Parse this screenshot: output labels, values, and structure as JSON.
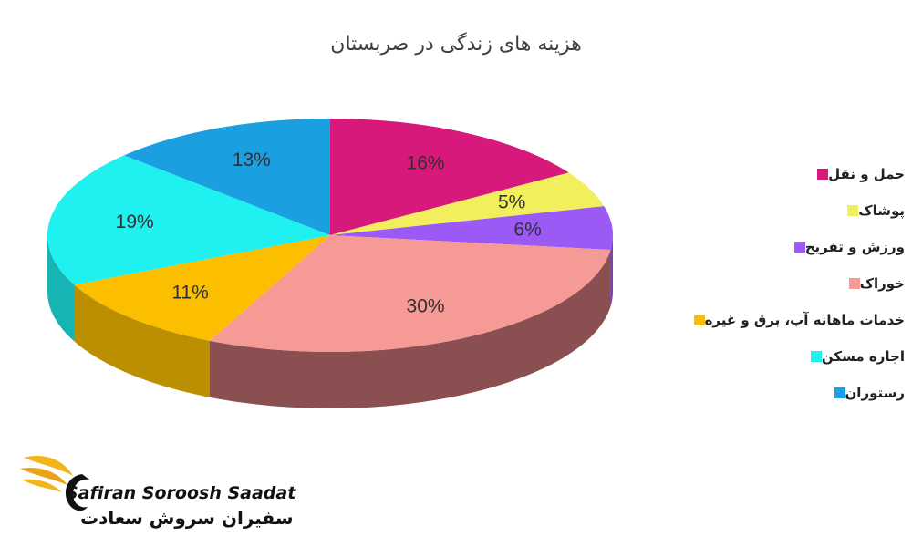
{
  "chart_data": {
    "type": "pie",
    "title": "هزینه های زندگی در صربستان",
    "categories": [
      "حمل و نقل",
      "پوشاک",
      "ورزش و تفریح",
      "خوراک",
      "خدمات ماهانه آب، برق و غیره",
      "اجاره مسکن",
      "رستوران"
    ],
    "values": [
      16,
      5,
      6,
      30,
      11,
      19,
      13
    ],
    "value_labels": [
      "16%",
      "5%",
      "6%",
      "30%",
      "11%",
      "19%",
      "13%"
    ],
    "colors": [
      "#d6197a",
      "#f2ef5c",
      "#9b59f5",
      "#f59a95",
      "#fbbf00",
      "#1ff0f0",
      "#1aa0e0"
    ],
    "side_colors": [
      "#a1155e",
      "#b5b34a",
      "#7445b8",
      "#8a4f51",
      "#bc8f00",
      "#17b4b4",
      "#1378a8"
    ],
    "legend_position": "right",
    "three_d": true
  },
  "logo": {
    "latin_text": "Safiran Soroosh Saadat",
    "persian_text": "سفیران سروش سعادت"
  }
}
